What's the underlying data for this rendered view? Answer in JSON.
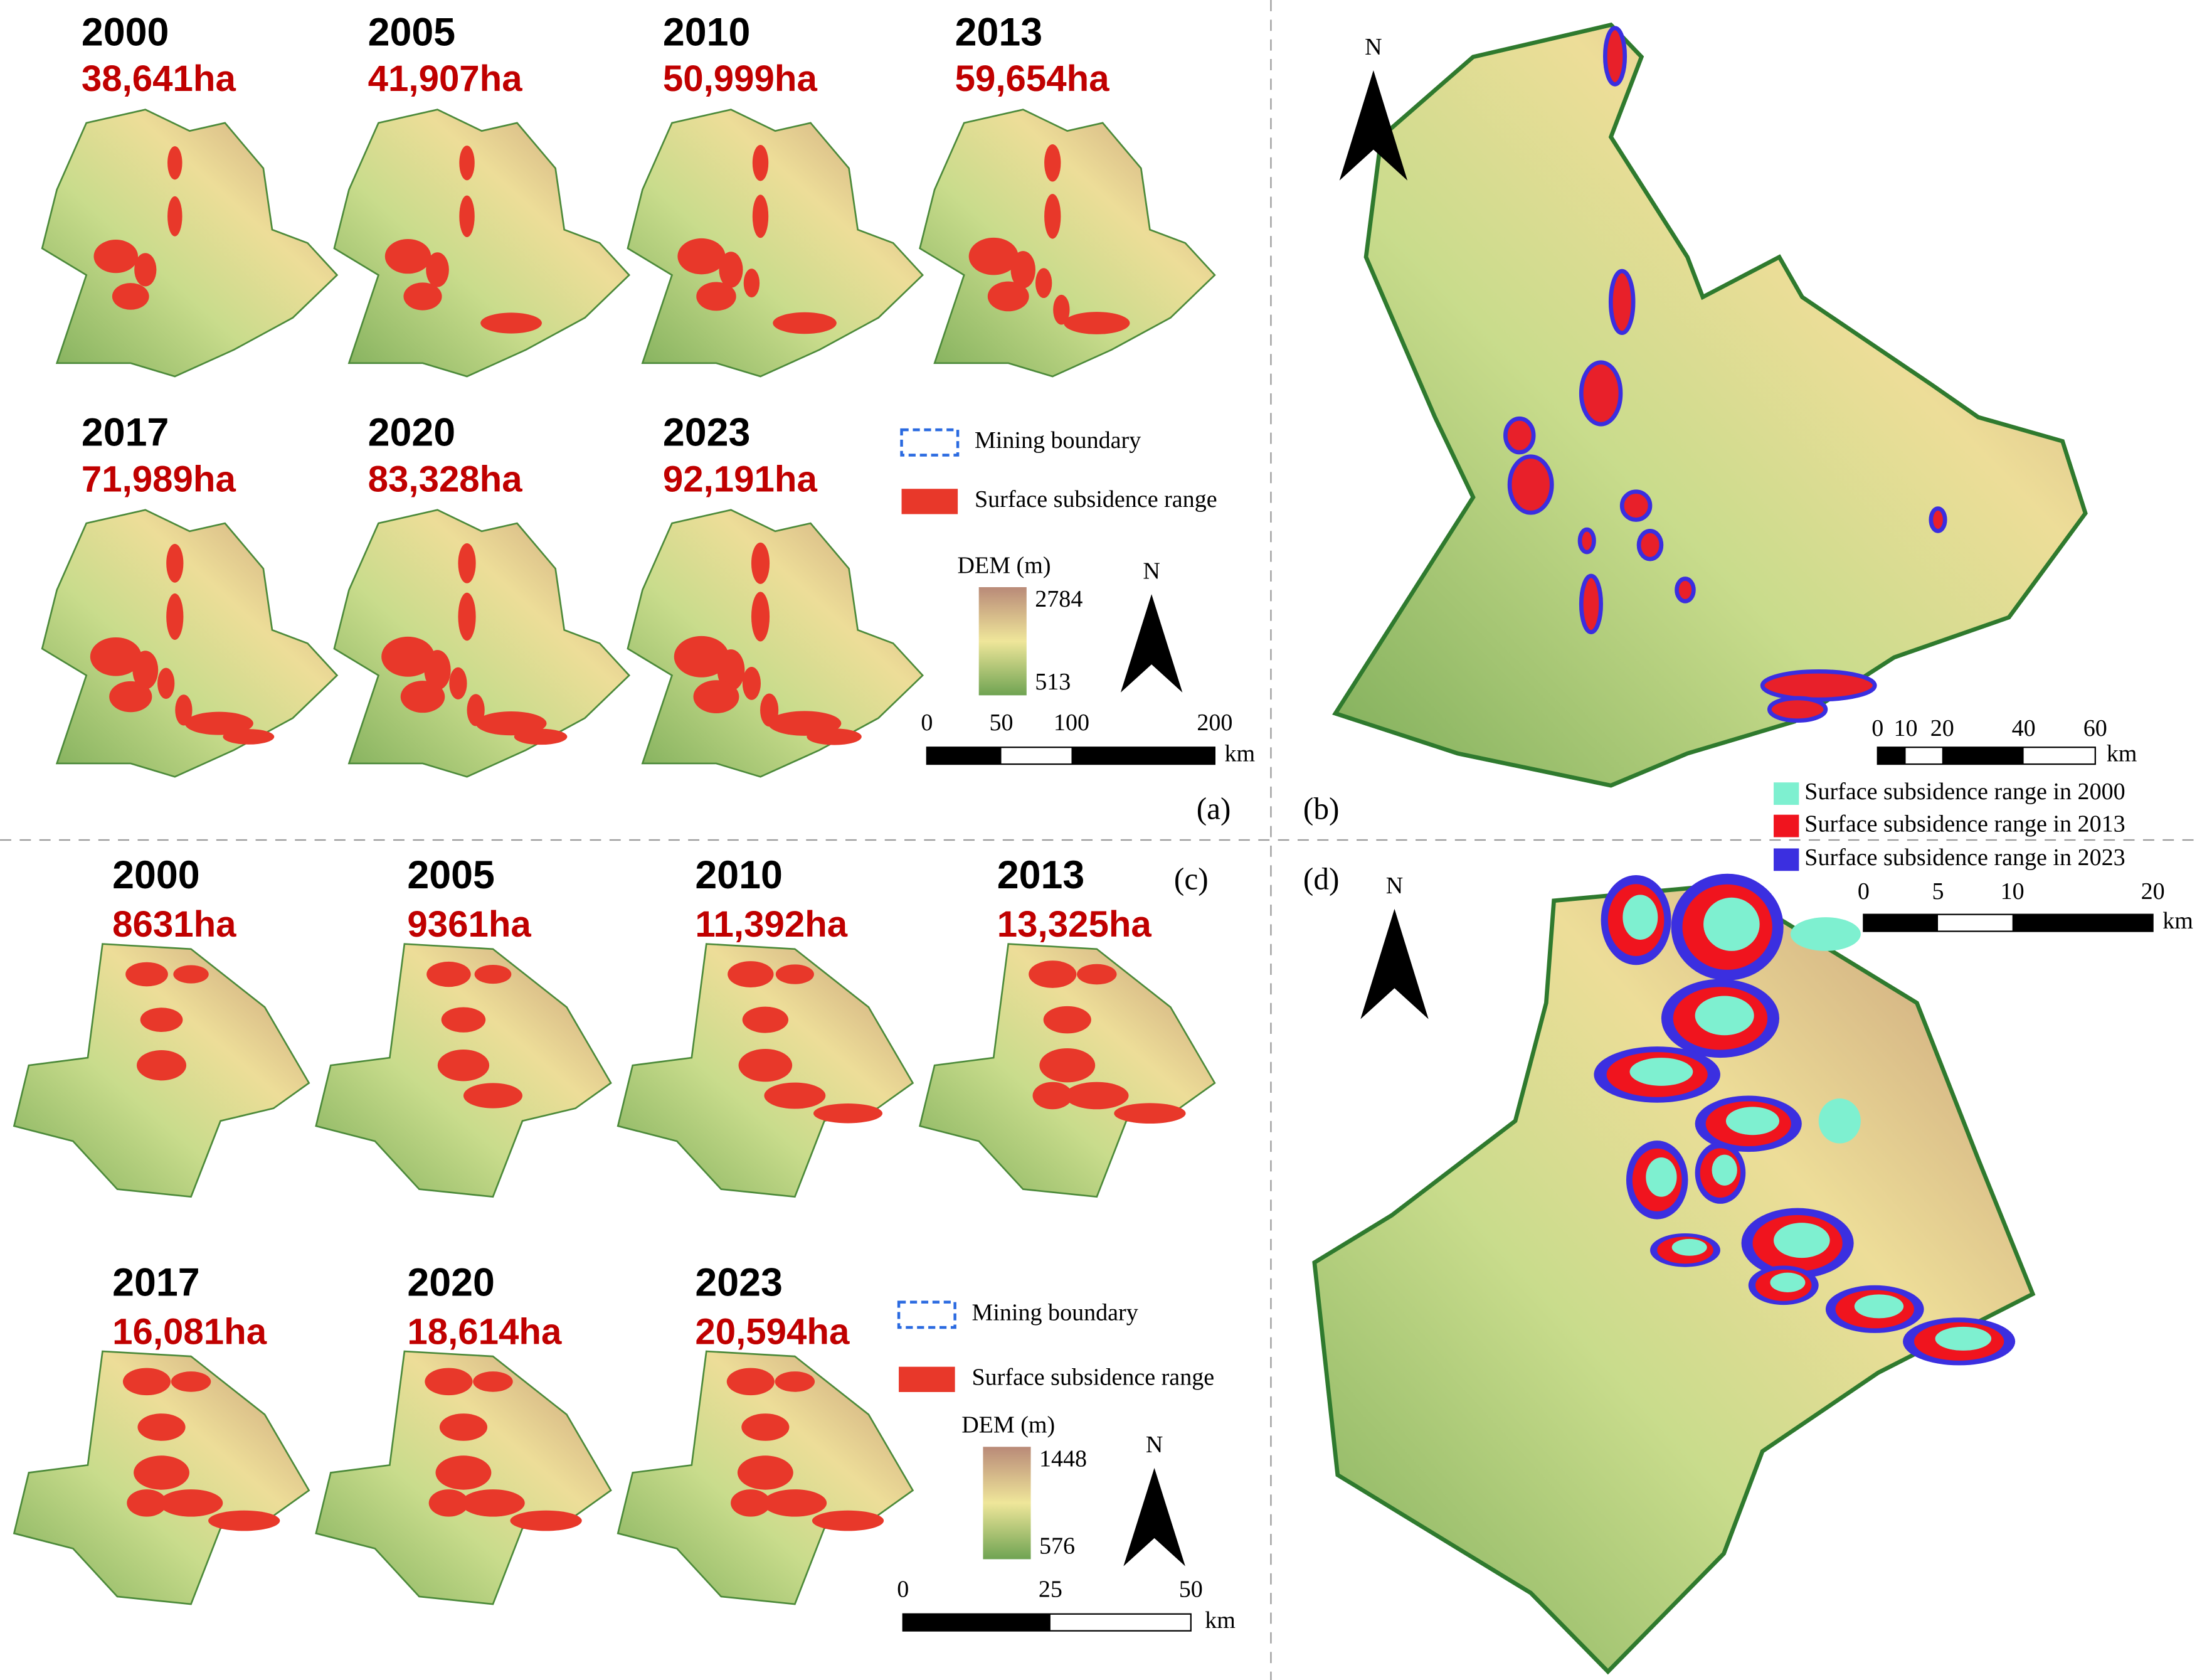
{
  "panel_a": {
    "label": "(a)",
    "maps": [
      {
        "year": "2000",
        "area": "38,641ha"
      },
      {
        "year": "2005",
        "area": "41,907ha"
      },
      {
        "year": "2010",
        "area": "50,999ha"
      },
      {
        "year": "2013",
        "area": "59,654ha"
      },
      {
        "year": "2017",
        "area": "71,989ha"
      },
      {
        "year": "2020",
        "area": "83,328ha"
      },
      {
        "year": "2023",
        "area": "92,191ha"
      }
    ],
    "legend": {
      "mining_boundary": "Mining boundary",
      "subsidence": "Surface subsidence range"
    },
    "dem": {
      "title": "DEM (m)",
      "max": "2784",
      "min": "513"
    },
    "north": "N",
    "scale": {
      "ticks": [
        "0",
        "50",
        "100",
        "200"
      ],
      "unit": "km"
    }
  },
  "panel_b": {
    "label": "(b)",
    "north": "N",
    "scale": {
      "ticks": [
        "0",
        "10",
        "20",
        "40",
        "60"
      ],
      "unit": "km"
    },
    "legend": [
      "Surface subsidence range in 2000",
      "Surface subsidence range in 2013",
      "Surface subsidence range in 2023"
    ]
  },
  "panel_c": {
    "label": "(c)",
    "maps": [
      {
        "year": "2000",
        "area": "8631ha"
      },
      {
        "year": "2005",
        "area": "9361ha"
      },
      {
        "year": "2010",
        "area": "11,392ha"
      },
      {
        "year": "2013",
        "area": "13,325ha"
      },
      {
        "year": "2017",
        "area": "16,081ha"
      },
      {
        "year": "2020",
        "area": "18,614ha"
      },
      {
        "year": "2023",
        "area": "20,594ha"
      }
    ],
    "legend": {
      "mining_boundary": "Mining boundary",
      "subsidence": "Surface subsidence range"
    },
    "dem": {
      "title": "DEM (m)",
      "max": "1448",
      "min": "576"
    },
    "north": "N",
    "scale": {
      "ticks": [
        "0",
        "25",
        "50"
      ],
      "unit": "km"
    }
  },
  "panel_d": {
    "label": "(d)",
    "north": "N",
    "scale": {
      "ticks": [
        "0",
        "5",
        "10",
        "20"
      ],
      "unit": "km"
    }
  }
}
